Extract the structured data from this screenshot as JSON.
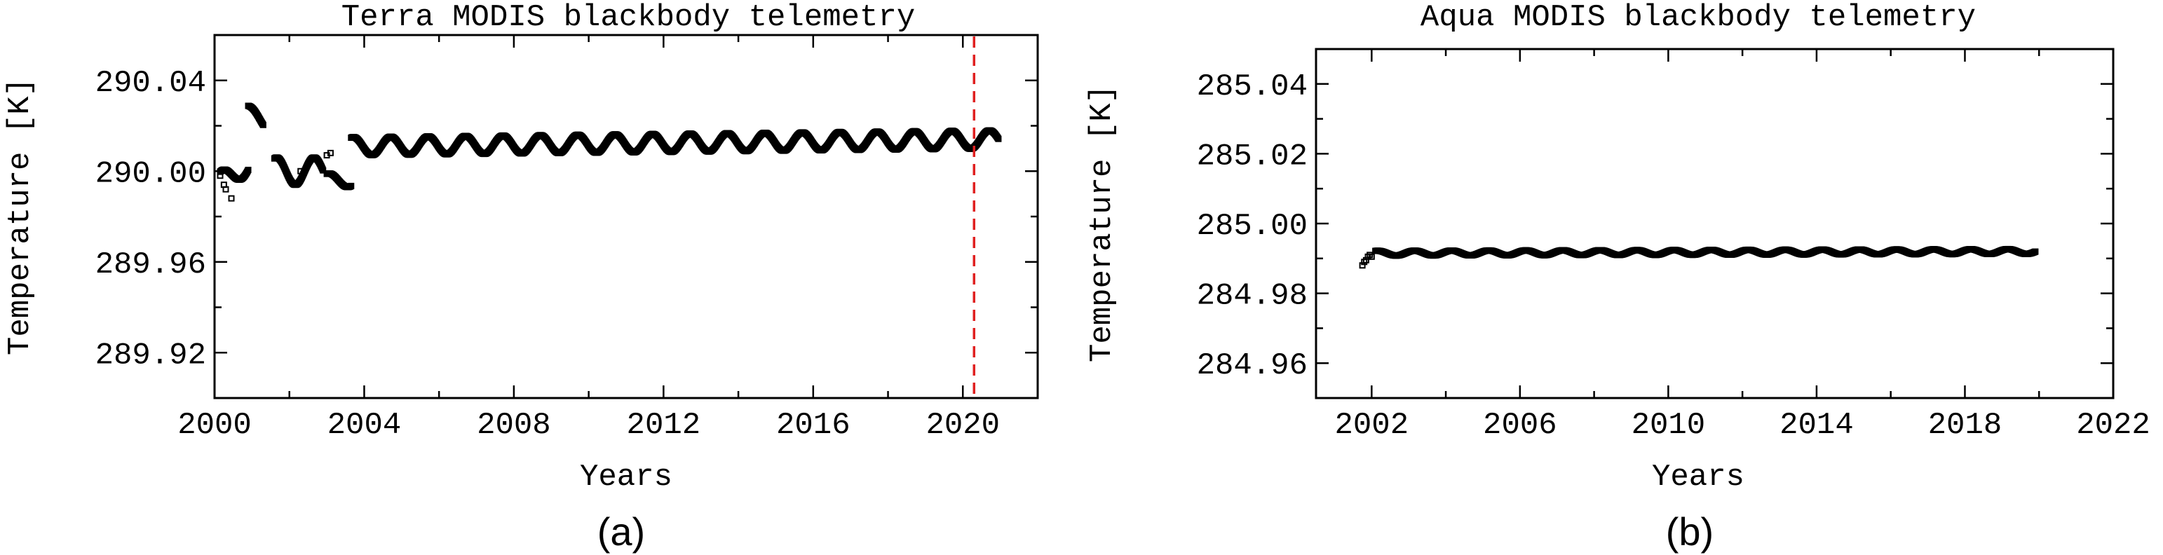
{
  "chart_data": [
    {
      "type": "scatter",
      "panel_label": "(a)",
      "title": "Terra MODIS blackbody telemetry",
      "xlabel": "Years",
      "ylabel": "Temperature [K]",
      "xlim": [
        2000,
        2022
      ],
      "ylim": [
        289.9,
        290.06
      ],
      "xticks": [
        2000,
        2004,
        2008,
        2012,
        2016,
        2020
      ],
      "xtick_labels": [
        "2000",
        "2004",
        "2008",
        "2012",
        "2016",
        "2020"
      ],
      "yticks": [
        289.92,
        289.96,
        290.0,
        290.04
      ],
      "ytick_labels": [
        "289.92",
        "289.96",
        "290.00",
        "290.04"
      ],
      "grid": false,
      "marker": "open square",
      "series_color": "#000000",
      "reference_line": {
        "x": 2020.3,
        "style": "dashed",
        "color": "#e02020"
      },
      "segments": [
        {
          "x_start": 2000.15,
          "x_end": 2000.9,
          "base": 289.996,
          "amplitude": 0.004,
          "trend": 0.006,
          "period": 1.0
        },
        {
          "x_start": 2000.9,
          "x_end": 2001.3,
          "base": 290.026,
          "amplitude": 0.003,
          "trend": -0.004,
          "period": 1.0
        },
        {
          "x_start": 2001.6,
          "x_end": 2002.9,
          "base": 290.0,
          "amplitude": 0.006,
          "trend": 0.0,
          "period": 1.0
        },
        {
          "x_start": 2003.0,
          "x_end": 2003.65,
          "base": 289.996,
          "amplitude": 0.003,
          "trend": 0.0,
          "period": 1.0
        },
        {
          "x_start": 2003.65,
          "x_end": 2020.95,
          "base": 290.011,
          "amplitude": 0.004,
          "trend": 0.003,
          "period": 1.0
        }
      ],
      "outliers": [
        {
          "x": 2000.15,
          "y": 289.998
        },
        {
          "x": 2000.25,
          "y": 289.994
        },
        {
          "x": 2000.3,
          "y": 289.992
        },
        {
          "x": 2000.45,
          "y": 289.988
        },
        {
          "x": 2002.3,
          "y": 290.0
        },
        {
          "x": 2003.0,
          "y": 290.007
        },
        {
          "x": 2003.1,
          "y": 290.008
        }
      ]
    },
    {
      "type": "scatter",
      "panel_label": "(b)",
      "title": "Aqua MODIS blackbody telemetry",
      "xlabel": "Years",
      "ylabel": "Temperature [K]",
      "xlim": [
        2000.5,
        2022
      ],
      "ylim": [
        284.95,
        285.05
      ],
      "xticks": [
        2002,
        2006,
        2010,
        2014,
        2018,
        2022
      ],
      "xtick_labels": [
        "2002",
        "2006",
        "2010",
        "2014",
        "2018",
        "2022"
      ],
      "yticks": [
        284.96,
        284.98,
        285.0,
        285.02,
        285.04
      ],
      "ytick_labels": [
        "284.96",
        "284.98",
        "285.00",
        "285.02",
        "285.04"
      ],
      "grid": false,
      "marker": "open square",
      "series_color": "#000000",
      "segments": [
        {
          "x_start": 2002.1,
          "x_end": 2019.9,
          "base": 284.9915,
          "amplitude": 0.0007,
          "trend": 0.0005,
          "period": 1.0
        }
      ],
      "outliers": [
        {
          "x": 2001.75,
          "y": 284.988
        },
        {
          "x": 2001.8,
          "y": 284.989
        },
        {
          "x": 2001.85,
          "y": 284.9895
        },
        {
          "x": 2001.9,
          "y": 284.9905
        },
        {
          "x": 2001.95,
          "y": 284.991
        },
        {
          "x": 2002.0,
          "y": 284.9905
        }
      ]
    }
  ]
}
